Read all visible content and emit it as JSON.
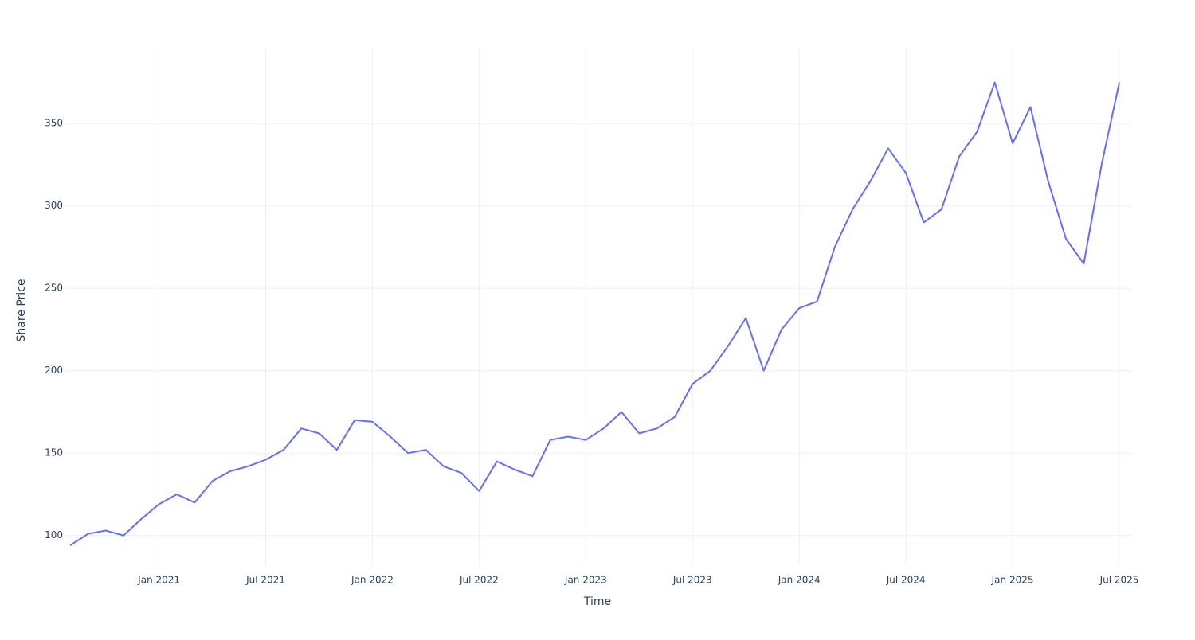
{
  "chart_data": {
    "type": "line",
    "x_title": "Time",
    "y_title": "Share Price",
    "x": [
      "2020-08",
      "2020-09",
      "2020-10",
      "2020-11",
      "2020-12",
      "2021-01",
      "2021-02",
      "2021-03",
      "2021-04",
      "2021-05",
      "2021-06",
      "2021-07",
      "2021-08",
      "2021-09",
      "2021-10",
      "2021-11",
      "2021-12",
      "2022-01",
      "2022-02",
      "2022-03",
      "2022-04",
      "2022-05",
      "2022-06",
      "2022-07",
      "2022-08",
      "2022-09",
      "2022-10",
      "2022-11",
      "2022-12",
      "2023-01",
      "2023-02",
      "2023-03",
      "2023-04",
      "2023-05",
      "2023-06",
      "2023-07",
      "2023-08",
      "2023-09",
      "2023-10",
      "2023-11",
      "2023-12",
      "2024-01",
      "2024-02",
      "2024-03",
      "2024-04",
      "2024-05",
      "2024-06",
      "2024-07",
      "2024-08",
      "2024-09",
      "2024-10",
      "2024-11",
      "2024-12",
      "2025-01",
      "2025-02",
      "2025-03",
      "2025-04",
      "2025-05",
      "2025-06",
      "2025-07"
    ],
    "series": [
      {
        "color": "#636efa",
        "values": [
          94,
          101,
          103,
          100,
          110,
          119,
          125,
          120,
          133,
          139,
          142,
          146,
          152,
          165,
          162,
          152,
          170,
          169,
          160,
          150,
          152,
          142,
          138,
          127,
          145,
          140,
          136,
          158,
          160,
          158,
          165,
          175,
          162,
          165,
          172,
          192,
          200,
          215,
          232,
          200,
          225,
          238,
          242,
          275,
          298,
          315,
          335,
          320,
          290,
          298,
          330,
          345,
          375,
          338,
          360,
          315,
          280,
          265,
          325,
          375
        ]
      }
    ],
    "xlim": [
      "2020-08",
      "2025-07"
    ],
    "xticks": [
      {
        "value": "2021-01",
        "label": "Jan 2021"
      },
      {
        "value": "2021-07",
        "label": "Jul 2021"
      },
      {
        "value": "2022-01",
        "label": "Jan 2022"
      },
      {
        "value": "2022-07",
        "label": "Jul 2022"
      },
      {
        "value": "2023-01",
        "label": "Jan 2023"
      },
      {
        "value": "2023-07",
        "label": "Jul 2023"
      },
      {
        "value": "2024-01",
        "label": "Jan 2024"
      },
      {
        "value": "2024-07",
        "label": "Jul 2024"
      },
      {
        "value": "2025-01",
        "label": "Jan 2025"
      },
      {
        "value": "2025-07",
        "label": "Jul 2025"
      }
    ],
    "ylim": [
      82,
      396
    ],
    "yticks": [
      100,
      150,
      200,
      250,
      300,
      350
    ],
    "grid": true
  }
}
